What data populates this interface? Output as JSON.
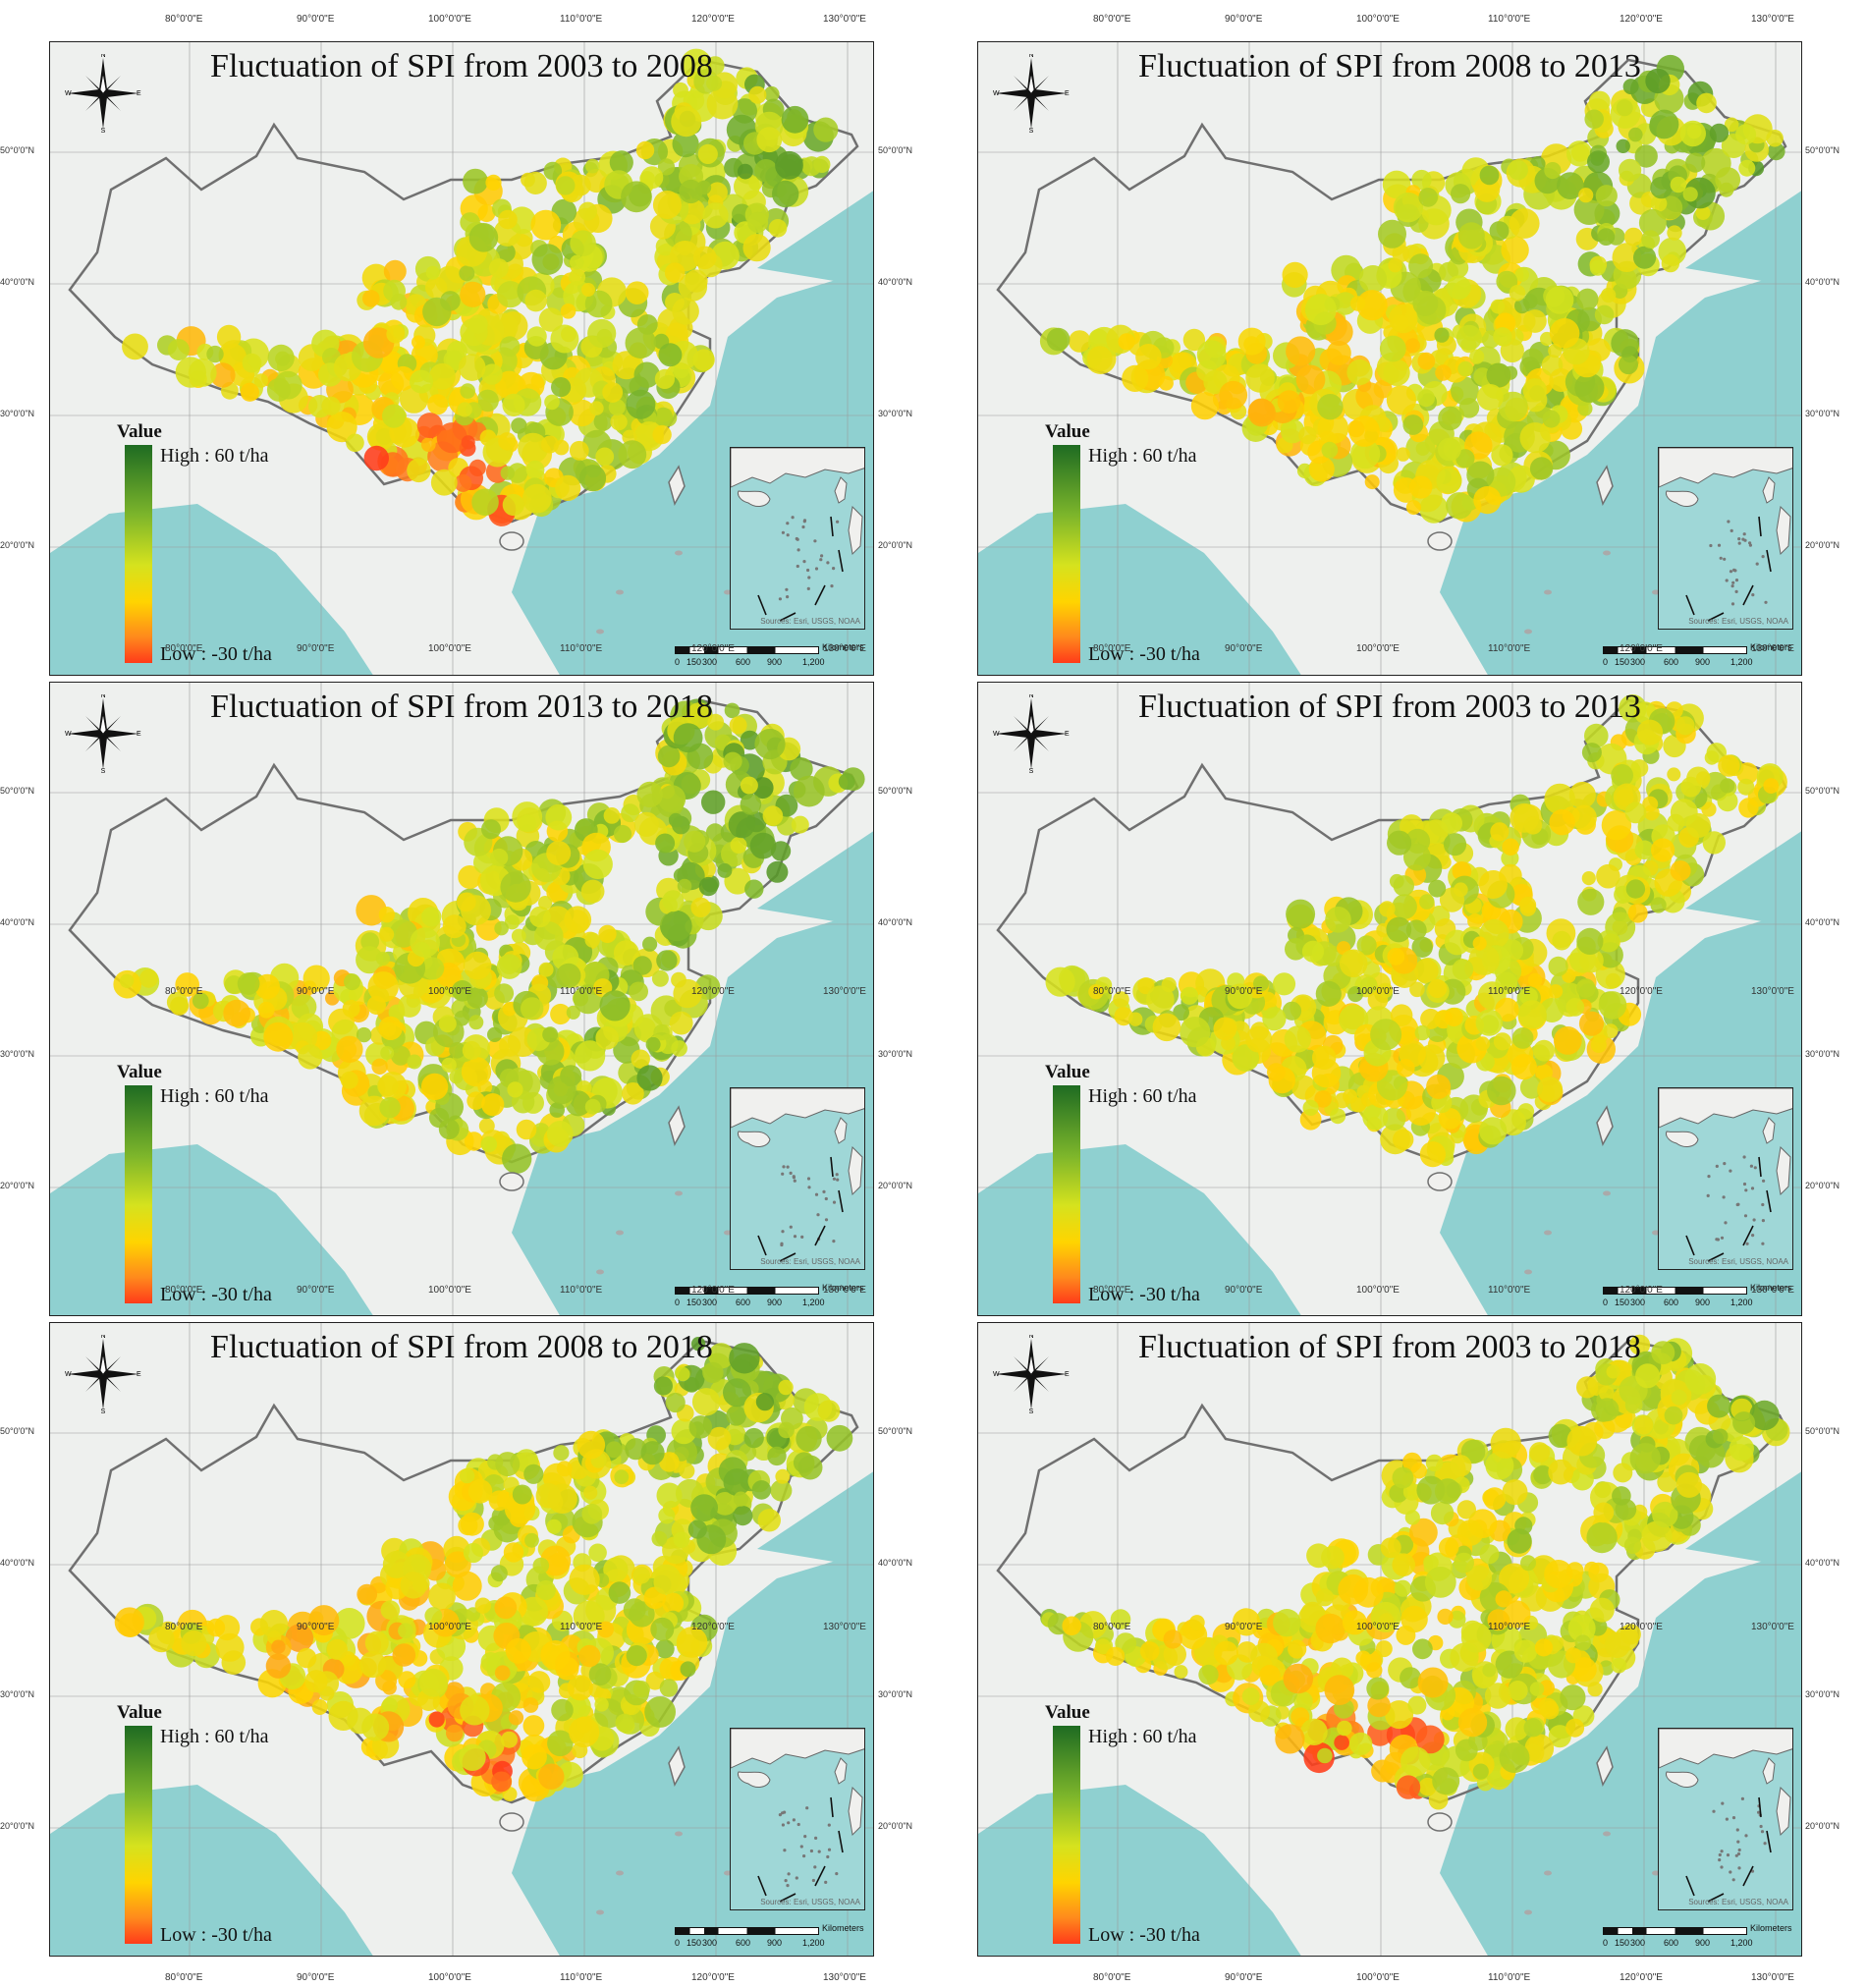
{
  "figure": {
    "panels": [
      {
        "title": "Fluctuation of SPI from 2003 to 2008",
        "pattern": {
          "north": 0.66,
          "east": 0.84,
          "west_edge": 0.3,
          "south": 0.62,
          "red_hotspot": true
        }
      },
      {
        "title": "Fluctuation of SPI from 2008 to 2013",
        "pattern": {
          "north": 0.6,
          "east": 0.9,
          "west_edge": 0.42,
          "south": 0.48,
          "red_hotspot": false
        }
      },
      {
        "title": "Fluctuation of SPI from 2013 to 2018",
        "pattern": {
          "north": 0.58,
          "east": 0.92,
          "west_edge": 0.32,
          "south": 0.7,
          "red_hotspot": false
        }
      },
      {
        "title": "Fluctuation of SPI from 2003 to 2013",
        "pattern": {
          "north": 0.68,
          "east": 0.44,
          "west_edge": 0.5,
          "south": 0.55,
          "red_hotspot": false
        }
      },
      {
        "title": "Fluctuation of SPI from 2008 to 2018",
        "pattern": {
          "north": 0.66,
          "east": 0.86,
          "west_edge": 0.36,
          "south": 0.4,
          "red_hotspot": true
        }
      },
      {
        "title": "Fluctuation of SPI from 2003 to 2018",
        "pattern": {
          "north": 0.56,
          "east": 0.78,
          "west_edge": 0.44,
          "south": 0.5,
          "red_hotspot": true
        }
      }
    ],
    "legend": {
      "title": "Value",
      "high": "High : 60 t/ha",
      "low": "Low : -30 t/ha",
      "high_value": 60,
      "low_value": -30,
      "unit": "t/ha",
      "colors": [
        "#1e6b22",
        "#7cb52b",
        "#d5e21e",
        "#ffd400",
        "#ff8a1c",
        "#ff3b1a"
      ]
    },
    "longitude_labels": [
      "80°0'0\"E",
      "90°0'0\"E",
      "100°0'0\"E",
      "110°0'0\"E",
      "120°0'0\"E",
      "130°0'0\"E"
    ],
    "latitude_labels": [
      "50°0'0\"N",
      "40°0'0\"N",
      "30°0'0\"N",
      "20°0'0\"N"
    ],
    "scale_bar": {
      "unit": "Kilometers",
      "ticks": [
        "0",
        "150",
        "300",
        "600",
        "900",
        "1,200"
      ]
    },
    "inset_source": "Sources: Esri, USGS, NOAA",
    "compass": {
      "n": "N",
      "s": "S",
      "e": "E",
      "w": "W"
    },
    "colors": {
      "land": "#eef0ee",
      "sea": "#8fd0d0",
      "border": "#707070",
      "grid": "#9a9a9a"
    }
  }
}
